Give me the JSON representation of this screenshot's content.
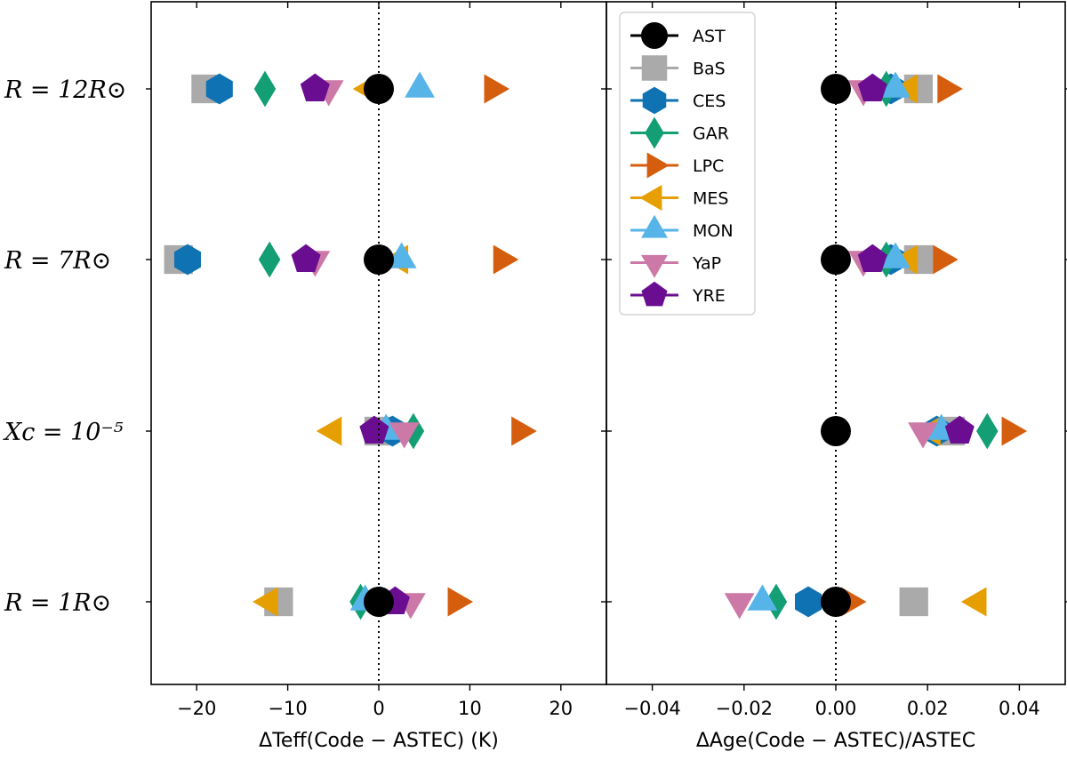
{
  "chart_data": {
    "type": "scatter",
    "y_categories": [
      {
        "key": "r12",
        "label": "R = 12R⊙"
      },
      {
        "key": "r7",
        "label": "R = 7R⊙"
      },
      {
        "key": "xc",
        "label": "Xc = 10⁻⁵"
      },
      {
        "key": "r1",
        "label": "R = 1R⊙"
      }
    ],
    "panels": [
      {
        "name": "teff",
        "xlabel": "ΔTeff(Code − ASTEC) (K)",
        "xlim": [
          -25,
          25
        ],
        "xticks": [
          -20,
          -10,
          0,
          10,
          20
        ],
        "xtick_labels": [
          "−20",
          "−10",
          "0",
          "10",
          "20"
        ],
        "series": [
          {
            "code": "AST",
            "values": {
              "r12": 0,
              "r7": 0,
              "xc": null,
              "r1": 0
            }
          },
          {
            "code": "BaS",
            "values": {
              "r12": -19,
              "r7": -22,
              "xc": 0,
              "r1": -11
            }
          },
          {
            "code": "CES",
            "values": {
              "r12": -17.5,
              "r7": -21,
              "xc": 1.5,
              "r1": 0.2
            }
          },
          {
            "code": "GAR",
            "values": {
              "r12": -12.5,
              "r7": -12,
              "xc": 3.8,
              "r1": -2
            }
          },
          {
            "code": "LPC",
            "values": {
              "r12": 12.5,
              "r7": 13.5,
              "xc": 15.5,
              "r1": 8.5
            }
          },
          {
            "code": "MES",
            "values": {
              "r12": -1,
              "r7": 2.3,
              "xc": -5,
              "r1": -12
            }
          },
          {
            "code": "MON",
            "values": {
              "r12": 4.5,
              "r7": 2.5,
              "xc": 0.8,
              "r1": -1.5
            }
          },
          {
            "code": "YaP",
            "values": {
              "r12": -5.5,
              "r7": -7,
              "xc": 2.8,
              "r1": 3.5
            }
          },
          {
            "code": "YRE",
            "values": {
              "r12": -7,
              "r7": -8,
              "xc": -0.5,
              "r1": 1.8
            }
          }
        ]
      },
      {
        "name": "age",
        "xlabel": "ΔAge(Code − ASTEC)/ASTEC",
        "xlim": [
          -0.05,
          0.05
        ],
        "xticks": [
          -0.04,
          -0.02,
          0,
          0.02,
          0.04
        ],
        "xtick_labels": [
          "−0.04",
          "−0.02",
          "0.00",
          "0.02",
          "0.04"
        ],
        "series": [
          {
            "code": "AST",
            "values": {
              "r12": 0,
              "r7": 0,
              "xc": 0,
              "r1": 0
            }
          },
          {
            "code": "BaS",
            "values": {
              "r12": 0.018,
              "r7": 0.018,
              "xc": 0.025,
              "r1": 0.017
            }
          },
          {
            "code": "CES",
            "values": {
              "r12": 0.012,
              "r7": 0.012,
              "xc": 0.022,
              "r1": -0.006
            }
          },
          {
            "code": "GAR",
            "values": {
              "r12": 0.011,
              "r7": 0.011,
              "xc": 0.033,
              "r1": -0.013
            }
          },
          {
            "code": "LPC",
            "values": {
              "r12": 0.024,
              "r7": 0.023,
              "xc": 0.038,
              "r1": 0.003
            }
          },
          {
            "code": "MES",
            "values": {
              "r12": 0.016,
              "r7": 0.016,
              "xc": 0.021,
              "r1": 0.031
            }
          },
          {
            "code": "MON",
            "values": {
              "r12": 0.013,
              "r7": 0.013,
              "xc": 0.023,
              "r1": -0.016
            }
          },
          {
            "code": "YaP",
            "values": {
              "r12": 0.006,
              "r7": 0.006,
              "xc": 0.019,
              "r1": -0.021
            }
          },
          {
            "code": "YRE",
            "values": {
              "r12": 0.008,
              "r7": 0.008,
              "xc": 0.027,
              "r1": 0
            }
          }
        ]
      }
    ],
    "reference_line": {
      "x": 0,
      "style": "dotted"
    },
    "legend": {
      "placement": "top-left of right panel",
      "entries": [
        {
          "code": "AST",
          "color": "#000000",
          "marker": "circle"
        },
        {
          "code": "BaS",
          "color": "#aaaaaa",
          "marker": "square"
        },
        {
          "code": "CES",
          "color": "#0f72b3",
          "marker": "hexagon"
        },
        {
          "code": "GAR",
          "color": "#139e73",
          "marker": "diamond"
        },
        {
          "code": "LPC",
          "color": "#d45e0e",
          "marker": "triangle-right"
        },
        {
          "code": "MES",
          "color": "#e69f00",
          "marker": "triangle-left"
        },
        {
          "code": "MON",
          "color": "#56b4e9",
          "marker": "triangle-up"
        },
        {
          "code": "YaP",
          "color": "#cc79a7",
          "marker": "triangle-down"
        },
        {
          "code": "YRE",
          "color": "#6a0d91",
          "marker": "pentagon"
        }
      ]
    }
  }
}
